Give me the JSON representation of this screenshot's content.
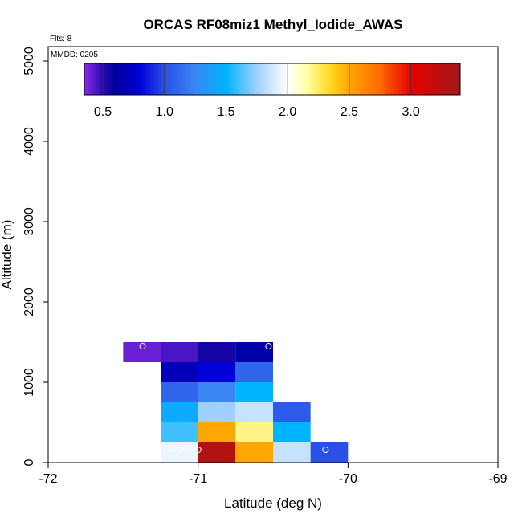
{
  "chart_data": {
    "type": "heatmap",
    "title": "ORCAS RF08miz1 Methyl_Iodide_AWAS",
    "flights_label": "Flts: 8",
    "date_label": "MMDD: 0205",
    "xlabel": "Latitude (deg N)",
    "ylabel": "Altitude (m)",
    "xlim": [
      -72,
      -69
    ],
    "ylim": [
      0,
      5200
    ],
    "x_ticks": [
      -72,
      -71,
      -70,
      -69
    ],
    "x_tick_labels": [
      "-72",
      "-71",
      "-70",
      "-69"
    ],
    "y_ticks": [
      0,
      1000,
      2000,
      3000,
      4000,
      5000
    ],
    "y_tick_labels": [
      "0",
      "1000",
      "2000",
      "3000",
      "4000",
      "5000"
    ],
    "grid": false,
    "colorbar": {
      "range": [
        0.35,
        3.4
      ],
      "ticks": [
        0.5,
        1.0,
        1.5,
        2.0,
        2.5,
        3.0
      ],
      "tick_labels": [
        "0.5",
        "1.0",
        "1.5",
        "2.0",
        "2.5",
        "3.0"
      ],
      "stops": [
        {
          "v": 0.35,
          "c": "#8a2be2"
        },
        {
          "v": 0.5,
          "c": "#2a0ab5"
        },
        {
          "v": 0.6,
          "c": "#000099"
        },
        {
          "v": 0.8,
          "c": "#0000d8"
        },
        {
          "v": 1.0,
          "c": "#2a50e6"
        },
        {
          "v": 1.25,
          "c": "#3a86f5"
        },
        {
          "v": 1.5,
          "c": "#00b4ff"
        },
        {
          "v": 1.75,
          "c": "#9fd0ff"
        },
        {
          "v": 2.0,
          "c": "#ffffff"
        },
        {
          "v": 2.15,
          "c": "#ffffa8"
        },
        {
          "v": 2.35,
          "c": "#ffd820"
        },
        {
          "v": 2.5,
          "c": "#ffa600"
        },
        {
          "v": 2.75,
          "c": "#ff6a00"
        },
        {
          "v": 3.0,
          "c": "#e80000"
        },
        {
          "v": 3.4,
          "c": "#9e1a1a"
        }
      ]
    },
    "cells": [
      {
        "x0": -71.5,
        "x1": -71.25,
        "y0": 1250,
        "y1": 1500,
        "value": 0.4
      },
      {
        "x0": -71.25,
        "x1": -71.0,
        "y0": 1250,
        "y1": 1500,
        "value": 0.45
      },
      {
        "x0": -71.0,
        "x1": -70.75,
        "y0": 1250,
        "y1": 1500,
        "value": 0.55
      },
      {
        "x0": -70.75,
        "x1": -70.5,
        "y0": 1250,
        "y1": 1500,
        "value": 0.65
      },
      {
        "x0": -71.25,
        "x1": -71.0,
        "y0": 1000,
        "y1": 1250,
        "value": 0.7
      },
      {
        "x0": -71.0,
        "x1": -70.75,
        "y0": 1000,
        "y1": 1250,
        "value": 0.8
      },
      {
        "x0": -70.75,
        "x1": -70.5,
        "y0": 1000,
        "y1": 1250,
        "value": 1.1
      },
      {
        "x0": -71.25,
        "x1": -71.0,
        "y0": 750,
        "y1": 1000,
        "value": 1.1
      },
      {
        "x0": -71.0,
        "x1": -70.75,
        "y0": 750,
        "y1": 1000,
        "value": 1.25
      },
      {
        "x0": -70.75,
        "x1": -70.5,
        "y0": 750,
        "y1": 1000,
        "value": 1.5
      },
      {
        "x0": -71.25,
        "x1": -71.0,
        "y0": 500,
        "y1": 750,
        "value": 1.45
      },
      {
        "x0": -71.0,
        "x1": -70.75,
        "y0": 500,
        "y1": 750,
        "value": 1.75
      },
      {
        "x0": -70.75,
        "x1": -70.5,
        "y0": 500,
        "y1": 750,
        "value": 1.85
      },
      {
        "x0": -70.5,
        "x1": -70.25,
        "y0": 500,
        "y1": 750,
        "value": 1.05
      },
      {
        "x0": -71.25,
        "x1": -71.0,
        "y0": 250,
        "y1": 500,
        "value": 1.6
      },
      {
        "x0": -71.0,
        "x1": -70.75,
        "y0": 250,
        "y1": 500,
        "value": 2.5
      },
      {
        "x0": -70.75,
        "x1": -70.5,
        "y0": 250,
        "y1": 500,
        "value": 2.2
      },
      {
        "x0": -70.5,
        "x1": -70.25,
        "y0": 250,
        "y1": 500,
        "value": 1.5
      },
      {
        "x0": -71.25,
        "x1": -71.0,
        "y0": 0,
        "y1": 250,
        "value": 1.95
      },
      {
        "x0": -71.0,
        "x1": -70.75,
        "y0": 0,
        "y1": 250,
        "value": 3.3
      },
      {
        "x0": -70.75,
        "x1": -70.5,
        "y0": 0,
        "y1": 250,
        "value": 2.5
      },
      {
        "x0": -70.5,
        "x1": -70.25,
        "y0": 0,
        "y1": 250,
        "value": 1.85
      },
      {
        "x0": -70.25,
        "x1": -70.0,
        "y0": 0,
        "y1": 250,
        "value": 1.0
      }
    ],
    "samples": [
      {
        "x": -71.37,
        "y": 1450
      },
      {
        "x": -70.53,
        "y": 1450
      },
      {
        "x": -71.18,
        "y": 170
      },
      {
        "x": -71.12,
        "y": 170
      },
      {
        "x": -71.07,
        "y": 180
      },
      {
        "x": -71.0,
        "y": 160
      },
      {
        "x": -70.15,
        "y": 160
      }
    ]
  }
}
